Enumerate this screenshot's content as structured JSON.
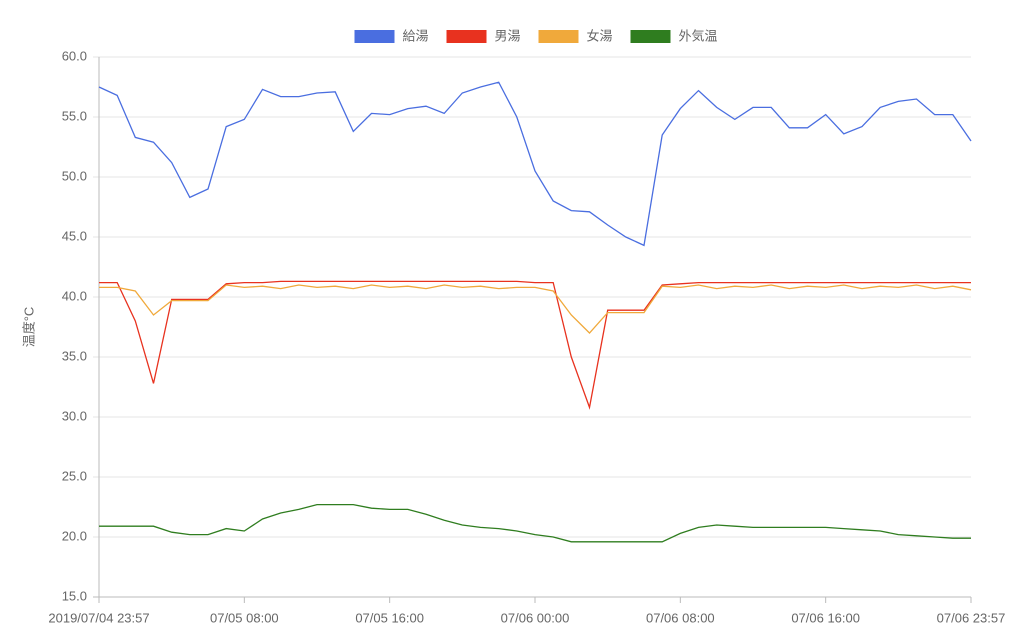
{
  "chart_data": {
    "type": "line",
    "ylabel": "温度°C",
    "categories": [
      "2019/07/04 23:57",
      null,
      null,
      null,
      null,
      null,
      null,
      null,
      "07/05 08:00",
      null,
      null,
      null,
      null,
      null,
      null,
      null,
      "07/05 16:00",
      null,
      null,
      null,
      null,
      null,
      null,
      null,
      "07/06 00:00",
      null,
      null,
      null,
      null,
      null,
      null,
      null,
      "07/06 08:00",
      null,
      null,
      null,
      null,
      null,
      null,
      null,
      "07/06 16:00",
      null,
      null,
      null,
      null,
      null,
      null,
      null,
      "07/06 23:57"
    ],
    "series": [
      {
        "name": "給湯",
        "color": "#4a6ee0",
        "values": [
          57.5,
          56.8,
          53.3,
          52.9,
          51.2,
          48.3,
          49.0,
          54.2,
          54.8,
          57.3,
          56.7,
          56.7,
          57.0,
          57.1,
          53.8,
          55.3,
          55.2,
          55.7,
          55.9,
          55.3,
          57.0,
          57.5,
          57.9,
          55.0,
          50.5,
          48.0,
          47.2,
          47.1,
          46.0,
          45.0,
          44.3,
          53.5,
          55.7,
          57.2,
          55.8,
          54.8,
          55.8,
          55.8,
          54.1,
          54.1,
          55.2,
          53.6,
          54.2,
          55.8,
          56.3,
          56.5,
          55.2,
          55.2,
          53.0
        ]
      },
      {
        "name": "男湯",
        "color": "#e8321f",
        "values": [
          41.2,
          41.2,
          38.0,
          32.8,
          39.8,
          39.8,
          39.8,
          41.1,
          41.2,
          41.2,
          41.3,
          41.3,
          41.3,
          41.3,
          41.3,
          41.3,
          41.3,
          41.3,
          41.3,
          41.3,
          41.3,
          41.3,
          41.3,
          41.3,
          41.2,
          41.2,
          35.0,
          30.8,
          38.9,
          38.9,
          38.9,
          41.0,
          41.1,
          41.2,
          41.2,
          41.2,
          41.2,
          41.2,
          41.2,
          41.2,
          41.2,
          41.2,
          41.2,
          41.2,
          41.2,
          41.2,
          41.2,
          41.2,
          41.2
        ]
      },
      {
        "name": "女湯",
        "color": "#f0a93b",
        "values": [
          40.8,
          40.8,
          40.5,
          38.5,
          39.7,
          39.7,
          39.7,
          41.0,
          40.8,
          40.9,
          40.7,
          41.0,
          40.8,
          40.9,
          40.7,
          41.0,
          40.8,
          40.9,
          40.7,
          41.0,
          40.8,
          40.9,
          40.7,
          40.8,
          40.8,
          40.5,
          38.5,
          37.0,
          38.7,
          38.7,
          38.7,
          40.9,
          40.8,
          41.0,
          40.7,
          40.9,
          40.8,
          41.0,
          40.7,
          40.9,
          40.8,
          41.0,
          40.7,
          40.9,
          40.8,
          41.0,
          40.7,
          40.9,
          40.6
        ]
      },
      {
        "name": "外気温",
        "color": "#2f7d1f",
        "values": [
          20.9,
          20.9,
          20.9,
          20.9,
          20.4,
          20.2,
          20.2,
          20.7,
          20.5,
          21.5,
          22.0,
          22.3,
          22.7,
          22.7,
          22.7,
          22.4,
          22.3,
          22.3,
          21.9,
          21.4,
          21.0,
          20.8,
          20.7,
          20.5,
          20.2,
          20.0,
          19.6,
          19.6,
          19.6,
          19.6,
          19.6,
          19.6,
          20.3,
          20.8,
          21.0,
          20.9,
          20.8,
          20.8,
          20.8,
          20.8,
          20.8,
          20.7,
          20.6,
          20.5,
          20.2,
          20.1,
          20.0,
          19.9,
          19.9
        ]
      }
    ],
    "ylim": [
      15,
      60
    ],
    "yticks": [
      {
        "value": 15,
        "label": "15.0"
      },
      {
        "value": 20,
        "label": "20.0"
      },
      {
        "value": 25,
        "label": "25.0"
      },
      {
        "value": 30,
        "label": "30.0"
      },
      {
        "value": 35,
        "label": "35.0"
      },
      {
        "value": 40,
        "label": "40.0"
      },
      {
        "value": 45,
        "label": "45.0"
      },
      {
        "value": 50,
        "label": "50.0"
      },
      {
        "value": 55,
        "label": "55.0"
      },
      {
        "value": 60,
        "label": "60.0"
      }
    ],
    "grid": true,
    "legend": "top"
  }
}
